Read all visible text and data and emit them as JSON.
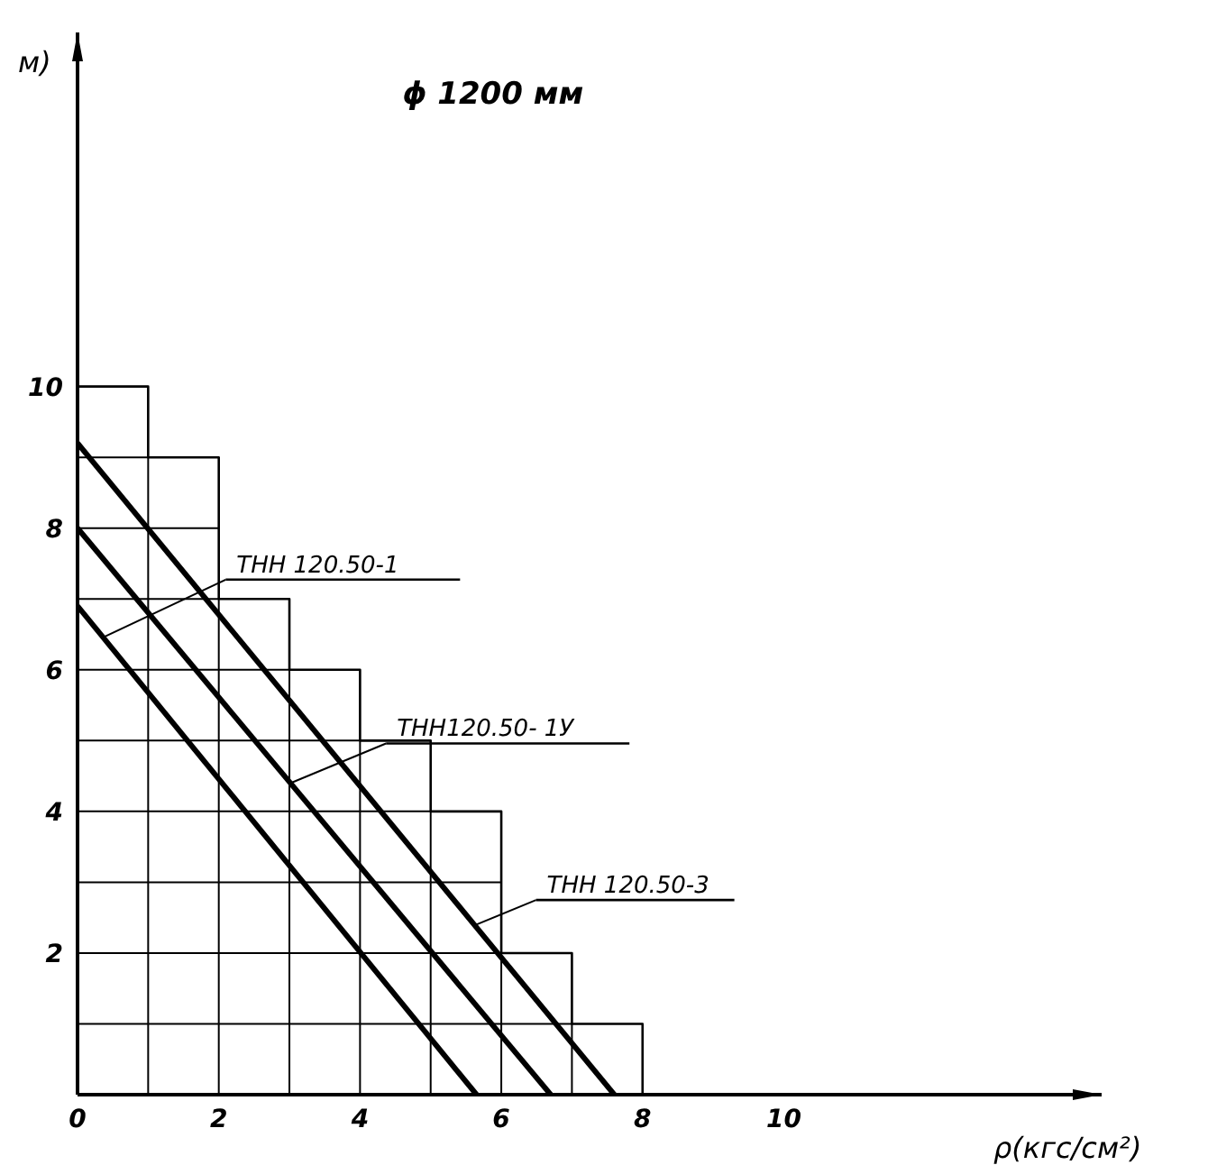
{
  "chart_data": {
    "type": "line",
    "title": "ϕ 1200 мм",
    "xlabel": "ρ(кгс/см²)",
    "ylabel": "м)",
    "xlim": [
      0,
      14.5
    ],
    "ylim": [
      0,
      15
    ],
    "xticks": [
      0,
      2,
      4,
      6,
      8,
      10
    ],
    "yticks": [
      2,
      4,
      6,
      8,
      10
    ],
    "legend": "bottom left",
    "marker": "none",
    "line_style": "solid",
    "series": [
      {
        "type": "step",
        "color": "#000000",
        "x": [
          0,
          1,
          2,
          3,
          4,
          5,
          6,
          7,
          8
        ],
        "values": [
          10,
          9,
          7,
          6,
          5,
          4,
          2,
          1,
          0
        ]
      },
      {
        "name": "ТНН 120.50-1",
        "color": "#000000",
        "x": [
          0,
          5.65
        ],
        "values": [
          6.9,
          0
        ]
      },
      {
        "name": "ТНН120.50- 1У",
        "color": "#000000",
        "x": [
          0,
          6.7
        ],
        "values": [
          8.0,
          0
        ]
      },
      {
        "name": "ТНН 120.50-3",
        "color": "#000000",
        "x": [
          0,
          7.6
        ],
        "values": [
          9.2,
          0
        ]
      }
    ]
  }
}
